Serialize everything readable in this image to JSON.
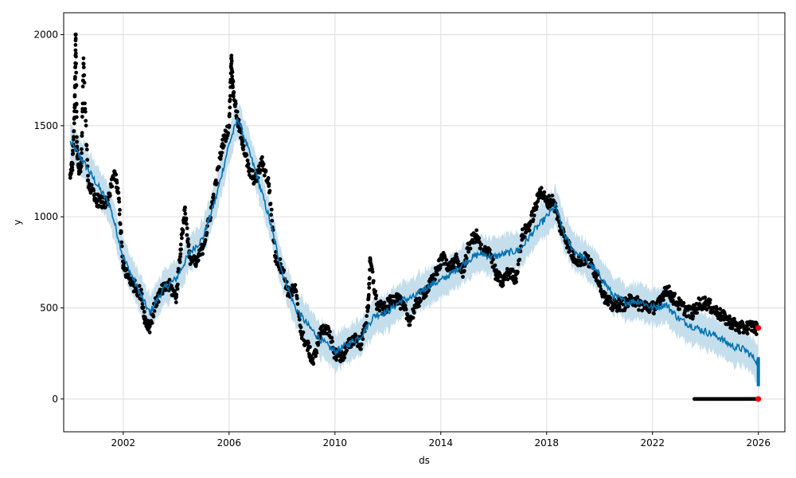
{
  "chart_data": {
    "type": "scatter",
    "title": "",
    "xlabel": "ds",
    "ylabel": "y",
    "xlim": [
      "1999-10-01",
      "2027-01-01"
    ],
    "ylim": [
      -180,
      2120
    ],
    "x_ticks": [
      "2002",
      "2006",
      "2010",
      "2014",
      "2018",
      "2022",
      "2026"
    ],
    "y_ticks": [
      0,
      500,
      1000,
      1500,
      2000
    ],
    "grid": true,
    "legend": "none",
    "colors": {
      "observed": "#000000",
      "forecast_line": "#0072B2",
      "uncertainty_band": "#BFDAEA",
      "future_points": "#ff0000",
      "grid": "#dddddd"
    },
    "series": [
      {
        "role": "observed",
        "points": [
          [
            "2000-01-01",
            1230
          ],
          [
            "2000-02-01",
            1290
          ],
          [
            "2000-03-01",
            1600
          ],
          [
            "2000-03-15",
            2000
          ],
          [
            "2000-04-01",
            1380
          ],
          [
            "2000-05-01",
            1250
          ],
          [
            "2000-06-01",
            1300
          ],
          [
            "2000-07-01",
            1840
          ],
          [
            "2000-09-01",
            1200
          ],
          [
            "2000-12-01",
            1100
          ],
          [
            "2001-03-01",
            1080
          ],
          [
            "2001-06-01",
            1070
          ],
          [
            "2001-09-01",
            1250
          ],
          [
            "2001-11-01",
            1100
          ],
          [
            "2002-01-01",
            720
          ],
          [
            "2002-03-01",
            680
          ],
          [
            "2002-06-01",
            620
          ],
          [
            "2002-09-01",
            580
          ],
          [
            "2002-11-01",
            430
          ],
          [
            "2003-01-01",
            400
          ],
          [
            "2003-04-01",
            540
          ],
          [
            "2003-07-01",
            600
          ],
          [
            "2003-10-01",
            620
          ],
          [
            "2004-01-01",
            560
          ],
          [
            "2004-03-01",
            820
          ],
          [
            "2004-05-01",
            1050
          ],
          [
            "2004-07-01",
            780
          ],
          [
            "2004-10-01",
            740
          ],
          [
            "2005-01-01",
            830
          ],
          [
            "2005-04-01",
            980
          ],
          [
            "2005-07-01",
            1180
          ],
          [
            "2005-10-01",
            1400
          ],
          [
            "2006-01-01",
            1500
          ],
          [
            "2006-02-01",
            1870
          ],
          [
            "2006-03-01",
            1680
          ],
          [
            "2006-05-01",
            1520
          ],
          [
            "2006-07-01",
            1420
          ],
          [
            "2006-10-01",
            1250
          ],
          [
            "2007-01-01",
            1200
          ],
          [
            "2007-04-01",
            1300
          ],
          [
            "2007-07-01",
            1180
          ],
          [
            "2007-10-01",
            780
          ],
          [
            "2008-01-01",
            720
          ],
          [
            "2008-04-01",
            580
          ],
          [
            "2008-07-01",
            600
          ],
          [
            "2008-10-01",
            350
          ],
          [
            "2009-01-01",
            280
          ],
          [
            "2009-03-01",
            200
          ],
          [
            "2009-06-01",
            350
          ],
          [
            "2009-09-01",
            400
          ],
          [
            "2010-01-01",
            250
          ],
          [
            "2010-04-01",
            230
          ],
          [
            "2010-07-01",
            290
          ],
          [
            "2010-10-01",
            340
          ],
          [
            "2011-01-01",
            300
          ],
          [
            "2011-04-01",
            500
          ],
          [
            "2011-05-01",
            760
          ],
          [
            "2011-08-01",
            520
          ],
          [
            "2011-11-01",
            490
          ],
          [
            "2012-02-01",
            530
          ],
          [
            "2012-05-01",
            560
          ],
          [
            "2012-08-01",
            500
          ],
          [
            "2012-11-01",
            430
          ],
          [
            "2013-02-01",
            520
          ],
          [
            "2013-05-01",
            580
          ],
          [
            "2013-08-01",
            620
          ],
          [
            "2013-11-01",
            700
          ],
          [
            "2014-02-01",
            780
          ],
          [
            "2014-05-01",
            720
          ],
          [
            "2014-08-01",
            760
          ],
          [
            "2014-11-01",
            700
          ],
          [
            "2015-02-01",
            850
          ],
          [
            "2015-05-01",
            900
          ],
          [
            "2015-08-01",
            800
          ],
          [
            "2015-11-01",
            820
          ],
          [
            "2016-02-01",
            680
          ],
          [
            "2016-05-01",
            640
          ],
          [
            "2016-08-01",
            700
          ],
          [
            "2016-11-01",
            660
          ],
          [
            "2017-02-01",
            900
          ],
          [
            "2017-05-01",
            950
          ],
          [
            "2017-08-01",
            1050
          ],
          [
            "2017-10-01",
            1150
          ],
          [
            "2018-01-01",
            1080
          ],
          [
            "2018-04-01",
            1090
          ],
          [
            "2018-07-01",
            950
          ],
          [
            "2018-10-01",
            870
          ],
          [
            "2019-01-01",
            780
          ],
          [
            "2019-04-01",
            760
          ],
          [
            "2019-07-01",
            770
          ],
          [
            "2019-10-01",
            720
          ],
          [
            "2020-01-01",
            640
          ],
          [
            "2020-04-01",
            540
          ],
          [
            "2020-07-01",
            510
          ],
          [
            "2020-10-01",
            520
          ],
          [
            "2021-01-01",
            520
          ],
          [
            "2021-04-01",
            550
          ],
          [
            "2021-07-01",
            520
          ],
          [
            "2021-10-01",
            510
          ],
          [
            "2022-01-01",
            500
          ],
          [
            "2022-04-01",
            520
          ],
          [
            "2022-07-01",
            610
          ],
          [
            "2022-10-01",
            560
          ],
          [
            "2023-01-01",
            520
          ],
          [
            "2023-04-01",
            490
          ],
          [
            "2023-07-01",
            470
          ],
          [
            "2023-10-01",
            520
          ],
          [
            "2024-01-01",
            530
          ],
          [
            "2024-04-01",
            500
          ],
          [
            "2024-07-01",
            470
          ],
          [
            "2024-10-01",
            440
          ],
          [
            "2025-01-01",
            420
          ],
          [
            "2025-04-01",
            390
          ],
          [
            "2025-07-01",
            390
          ],
          [
            "2025-10-01",
            400
          ],
          [
            "2025-12-15",
            385
          ]
        ]
      },
      {
        "role": "observed_near_zero",
        "x_start": "2023-08-01",
        "x_end": "2025-12-20",
        "y": 0
      },
      {
        "role": "forecast_yhat",
        "points": [
          [
            "2000-01-01",
            1410
          ],
          [
            "2000-07-01",
            1300
          ],
          [
            "2001-01-01",
            1180
          ],
          [
            "2001-07-01",
            1060
          ],
          [
            "2002-01-01",
            780
          ],
          [
            "2002-07-01",
            620
          ],
          [
            "2003-01-01",
            470
          ],
          [
            "2003-07-01",
            600
          ],
          [
            "2004-01-01",
            660
          ],
          [
            "2004-07-01",
            800
          ],
          [
            "2005-01-01",
            880
          ],
          [
            "2005-07-01",
            1100
          ],
          [
            "2006-01-01",
            1400
          ],
          [
            "2006-05-01",
            1540
          ],
          [
            "2007-01-01",
            1250
          ],
          [
            "2007-07-01",
            1000
          ],
          [
            "2008-01-01",
            700
          ],
          [
            "2008-07-01",
            500
          ],
          [
            "2009-01-01",
            400
          ],
          [
            "2009-07-01",
            320
          ],
          [
            "2010-01-01",
            260
          ],
          [
            "2010-07-01",
            300
          ],
          [
            "2011-01-01",
            350
          ],
          [
            "2011-07-01",
            460
          ],
          [
            "2012-01-01",
            480
          ],
          [
            "2012-07-01",
            540
          ],
          [
            "2013-01-01",
            560
          ],
          [
            "2013-07-01",
            620
          ],
          [
            "2014-01-01",
            650
          ],
          [
            "2014-07-01",
            700
          ],
          [
            "2015-01-01",
            760
          ],
          [
            "2015-07-01",
            800
          ],
          [
            "2016-01-01",
            780
          ],
          [
            "2016-07-01",
            800
          ],
          [
            "2017-01-01",
            820
          ],
          [
            "2017-07-01",
            920
          ],
          [
            "2018-01-01",
            1000
          ],
          [
            "2018-05-01",
            1060
          ],
          [
            "2018-09-01",
            900
          ],
          [
            "2019-01-01",
            820
          ],
          [
            "2019-07-01",
            760
          ],
          [
            "2020-01-01",
            680
          ],
          [
            "2020-07-01",
            570
          ],
          [
            "2021-01-01",
            530
          ],
          [
            "2021-07-01",
            540
          ],
          [
            "2022-01-01",
            500
          ],
          [
            "2022-07-01",
            520
          ],
          [
            "2023-01-01",
            440
          ],
          [
            "2023-07-01",
            400
          ],
          [
            "2024-01-01",
            370
          ],
          [
            "2024-07-01",
            340
          ],
          [
            "2025-01-01",
            290
          ],
          [
            "2025-07-01",
            270
          ],
          [
            "2026-01-01",
            200
          ]
        ],
        "uncertainty_halfwidth": 100
      },
      {
        "role": "future_points",
        "points": [
          [
            "2025-12-31",
            390
          ],
          [
            "2025-12-31",
            0
          ]
        ]
      }
    ]
  }
}
